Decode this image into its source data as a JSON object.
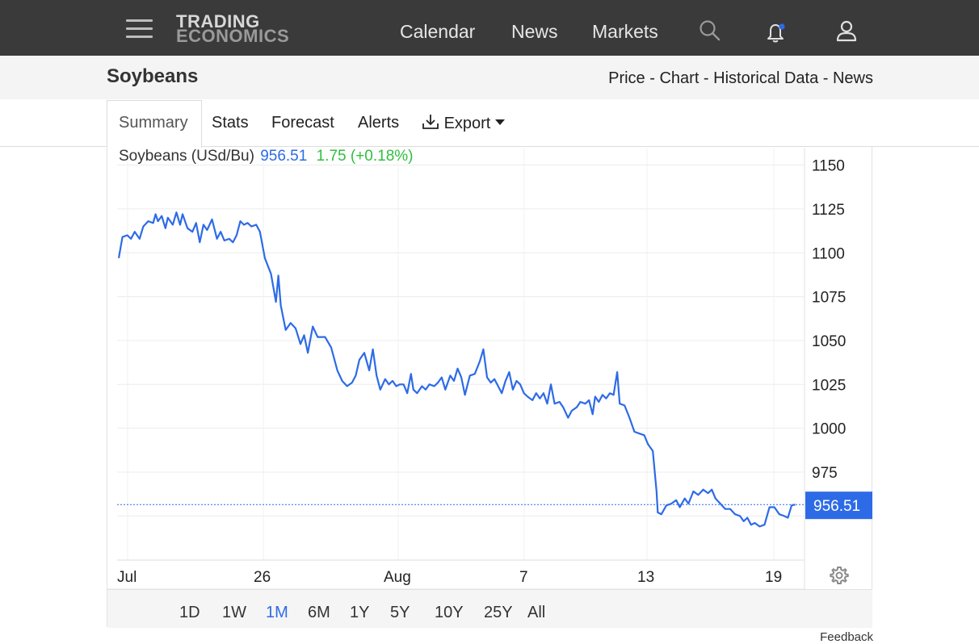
{
  "nav": {
    "logo_line1": "TRADING",
    "logo_line2": "ECONOMICS",
    "links": [
      "Calendar",
      "News",
      "Markets"
    ]
  },
  "header": {
    "title": "Soybeans",
    "crumbs": [
      "Price",
      "Chart",
      "Historical Data",
      "News"
    ],
    "separator": " - "
  },
  "tabs": [
    "Summary",
    "Stats",
    "Forecast",
    "Alerts"
  ],
  "export_label": "Export",
  "legend": {
    "name": "Soybeans (USd/Bu)",
    "price": "956.51",
    "change": "1.75 (+0.18%)"
  },
  "ranges": [
    "1D",
    "1W",
    "1M",
    "6M",
    "1Y",
    "5Y",
    "10Y",
    "25Y",
    "All"
  ],
  "active_range": "1M",
  "feedback_label": "Feedback",
  "colors": {
    "line": "#2d6be6",
    "change_up": "#2fbf3f",
    "price_tag_bg": "#2d6be6"
  },
  "chart_data": {
    "type": "line",
    "ylim": [
      930,
      1162
    ],
    "yticks": [
      975,
      1000,
      1025,
      1050,
      1075,
      1100,
      1125,
      1150
    ],
    "xtick_labels": [
      "Jul",
      "26",
      "Aug",
      "7",
      "13",
      "19"
    ],
    "last_value_label": "956.51",
    "grid": true,
    "series": [
      {
        "name": "Soybeans (USd/Bu)",
        "points": [
          [
            0,
            1097
          ],
          [
            0.3,
            1109
          ],
          [
            0.7,
            1110
          ],
          [
            1.0,
            1108
          ],
          [
            1.3,
            1112
          ],
          [
            1.7,
            1108
          ],
          [
            2.0,
            1115
          ],
          [
            2.4,
            1118
          ],
          [
            2.8,
            1117
          ],
          [
            3.0,
            1122
          ],
          [
            3.2,
            1118
          ],
          [
            3.5,
            1121
          ],
          [
            3.8,
            1114
          ],
          [
            4.0,
            1120
          ],
          [
            4.4,
            1116
          ],
          [
            4.7,
            1123
          ],
          [
            5.0,
            1116
          ],
          [
            5.2,
            1122
          ],
          [
            5.6,
            1114
          ],
          [
            6.0,
            1112
          ],
          [
            6.3,
            1117
          ],
          [
            6.6,
            1106
          ],
          [
            6.9,
            1116
          ],
          [
            7.2,
            1113
          ],
          [
            7.6,
            1119
          ],
          [
            8.0,
            1108
          ],
          [
            8.3,
            1112
          ],
          [
            8.6,
            1107
          ],
          [
            9.0,
            1108
          ],
          [
            9.3,
            1106
          ],
          [
            9.6,
            1110
          ],
          [
            9.9,
            1118
          ],
          [
            10.2,
            1116
          ],
          [
            10.5,
            1117
          ],
          [
            10.8,
            1115
          ],
          [
            11.2,
            1116
          ],
          [
            11.5,
            1112
          ],
          [
            11.9,
            1097
          ],
          [
            12.4,
            1088
          ],
          [
            12.8,
            1072
          ],
          [
            13.0,
            1087
          ],
          [
            13.2,
            1070
          ],
          [
            13.6,
            1056
          ],
          [
            14.0,
            1060
          ],
          [
            14.4,
            1057
          ],
          [
            14.8,
            1048
          ],
          [
            15.1,
            1053
          ],
          [
            15.4,
            1043
          ],
          [
            15.8,
            1058
          ],
          [
            16.2,
            1052
          ],
          [
            16.8,
            1052
          ],
          [
            17.3,
            1046
          ],
          [
            17.8,
            1033
          ],
          [
            18.2,
            1027
          ],
          [
            18.6,
            1024
          ],
          [
            19.0,
            1026
          ],
          [
            19.3,
            1030
          ],
          [
            19.6,
            1039
          ],
          [
            20.0,
            1043
          ],
          [
            20.4,
            1033
          ],
          [
            20.7,
            1045
          ],
          [
            21.0,
            1030
          ],
          [
            21.3,
            1022
          ],
          [
            21.7,
            1028
          ],
          [
            22.0,
            1025
          ],
          [
            22.3,
            1027
          ],
          [
            22.6,
            1024
          ],
          [
            22.9,
            1025
          ],
          [
            23.2,
            1025
          ],
          [
            23.5,
            1020
          ],
          [
            23.8,
            1031
          ],
          [
            24.0,
            1022
          ],
          [
            24.3,
            1020
          ],
          [
            24.7,
            1024
          ],
          [
            25.0,
            1022
          ],
          [
            25.3,
            1025
          ],
          [
            25.7,
            1024
          ],
          [
            26.0,
            1026
          ],
          [
            26.3,
            1029
          ],
          [
            26.6,
            1022
          ],
          [
            27.0,
            1030
          ],
          [
            27.3,
            1027
          ],
          [
            27.6,
            1034
          ],
          [
            27.9,
            1029
          ],
          [
            28.2,
            1019
          ],
          [
            28.6,
            1030
          ],
          [
            29.0,
            1031
          ],
          [
            29.4,
            1038
          ],
          [
            29.7,
            1045
          ],
          [
            30.0,
            1029
          ],
          [
            30.3,
            1026
          ],
          [
            30.6,
            1028
          ],
          [
            30.9,
            1024
          ],
          [
            31.2,
            1020
          ],
          [
            31.5,
            1027
          ],
          [
            31.8,
            1032
          ],
          [
            32.1,
            1022
          ],
          [
            32.4,
            1027
          ],
          [
            32.7,
            1025
          ],
          [
            33.0,
            1020
          ],
          [
            33.3,
            1018
          ],
          [
            33.7,
            1016
          ],
          [
            34.0,
            1020
          ],
          [
            34.3,
            1017
          ],
          [
            34.6,
            1020
          ],
          [
            34.9,
            1014
          ],
          [
            35.2,
            1025
          ],
          [
            35.5,
            1014
          ],
          [
            35.9,
            1015
          ],
          [
            36.2,
            1012
          ],
          [
            36.6,
            1006
          ],
          [
            36.9,
            1010
          ],
          [
            37.3,
            1012
          ],
          [
            37.6,
            1015
          ],
          [
            38.0,
            1014
          ],
          [
            38.3,
            1016
          ],
          [
            38.6,
            1008
          ],
          [
            38.8,
            1018
          ],
          [
            39.1,
            1015
          ],
          [
            39.4,
            1019
          ],
          [
            39.7,
            1017
          ],
          [
            40.0,
            1020
          ],
          [
            40.3,
            1019
          ],
          [
            40.6,
            1032
          ],
          [
            40.8,
            1014
          ],
          [
            41.2,
            1013
          ],
          [
            41.6,
            1006
          ],
          [
            42.0,
            998
          ],
          [
            42.4,
            997
          ],
          [
            42.8,
            996
          ],
          [
            43.1,
            991
          ],
          [
            43.5,
            987
          ],
          [
            43.8,
            964
          ],
          [
            43.9,
            952
          ],
          [
            44.2,
            951
          ],
          [
            44.6,
            956
          ],
          [
            45.0,
            957
          ],
          [
            45.4,
            959
          ],
          [
            45.7,
            955
          ],
          [
            46.1,
            960
          ],
          [
            46.4,
            957
          ],
          [
            46.8,
            964
          ],
          [
            47.2,
            962
          ],
          [
            47.6,
            965
          ],
          [
            48.0,
            963
          ],
          [
            48.3,
            965
          ],
          [
            48.6,
            960
          ],
          [
            49.0,
            957
          ],
          [
            49.4,
            954
          ],
          [
            49.8,
            954
          ],
          [
            50.2,
            951
          ],
          [
            50.6,
            950
          ],
          [
            50.9,
            947
          ],
          [
            51.2,
            949
          ],
          [
            51.5,
            945
          ],
          [
            51.8,
            946
          ],
          [
            52.2,
            944
          ],
          [
            52.6,
            945
          ],
          [
            53.0,
            955
          ],
          [
            53.4,
            955
          ],
          [
            53.8,
            951
          ],
          [
            54.2,
            950
          ],
          [
            54.5,
            949
          ],
          [
            54.8,
            956
          ],
          [
            55.1,
            956.51
          ]
        ]
      }
    ]
  }
}
